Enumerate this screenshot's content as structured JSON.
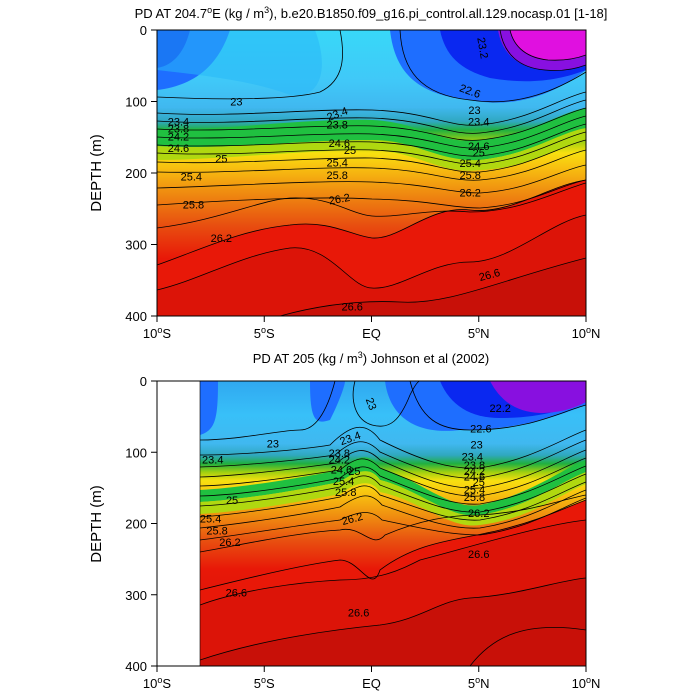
{
  "chart_data": [
    {
      "type": "contour",
      "title": "PD AT 204.7",
      "title_superscript": "o",
      "title_rest": "E (kg / m",
      "title_unit_superscript": "3",
      "title_tail": "), b.e20.B1850.f09_g16.pi_control.all.129.nocasp.01 [1-18]",
      "xlabel": "",
      "ylabel": "DEPTH (m)",
      "ylim": [
        400,
        0
      ],
      "xlim": [
        -10,
        10
      ],
      "x_ticks": [
        {
          "value": -10,
          "label": "10",
          "sup": "o",
          "suffix": "S"
        },
        {
          "value": -5,
          "label": "5",
          "sup": "o",
          "suffix": "S"
        },
        {
          "value": 0,
          "label": "EQ",
          "sup": "",
          "suffix": ""
        },
        {
          "value": 5,
          "label": "5",
          "sup": "o",
          "suffix": "N"
        },
        {
          "value": 10,
          "label": "10",
          "sup": "o",
          "suffix": "N"
        }
      ],
      "y_ticks": [
        {
          "value": 0,
          "label": "0"
        },
        {
          "value": 100,
          "label": "100"
        },
        {
          "value": 200,
          "label": "200"
        },
        {
          "value": 300,
          "label": "300"
        },
        {
          "value": 400,
          "label": "400"
        }
      ],
      "data_start_lat": -10,
      "contour_labels": [
        {
          "text": "23.2",
          "lat": 5.2,
          "depth": 25,
          "rotate": 80
        },
        {
          "text": "22.6",
          "lat": 4.6,
          "depth": 85,
          "rotate": 20
        },
        {
          "text": "23",
          "lat": -6.3,
          "depth": 100,
          "rotate": 0
        },
        {
          "text": "23.4",
          "lat": -1.6,
          "depth": 117,
          "rotate": -20
        },
        {
          "text": "23",
          "lat": 4.8,
          "depth": 112,
          "rotate": 0
        },
        {
          "text": "23.4",
          "lat": -9.0,
          "depth": 128,
          "rotate": 0
        },
        {
          "text": "23.4",
          "lat": 5.0,
          "depth": 128,
          "rotate": 0
        },
        {
          "text": "23.8",
          "lat": -1.6,
          "depth": 132,
          "rotate": 0
        },
        {
          "text": "23.8",
          "lat": -9.0,
          "depth": 138,
          "rotate": 0
        },
        {
          "text": "24.2",
          "lat": -9.0,
          "depth": 149,
          "rotate": 0
        },
        {
          "text": "24.6",
          "lat": -9.0,
          "depth": 165,
          "rotate": 0
        },
        {
          "text": "24.6",
          "lat": -1.5,
          "depth": 158,
          "rotate": 0
        },
        {
          "text": "25",
          "lat": -1.0,
          "depth": 168,
          "rotate": 0
        },
        {
          "text": "24.6",
          "lat": 5.0,
          "depth": 162,
          "rotate": 0
        },
        {
          "text": "25",
          "lat": 5.0,
          "depth": 171,
          "rotate": 0
        },
        {
          "text": "25",
          "lat": -7.0,
          "depth": 180,
          "rotate": 0
        },
        {
          "text": "25.4",
          "lat": -1.6,
          "depth": 185,
          "rotate": 0
        },
        {
          "text": "25.4",
          "lat": 4.6,
          "depth": 186,
          "rotate": 0
        },
        {
          "text": "25.4",
          "lat": -8.4,
          "depth": 205,
          "rotate": 0
        },
        {
          "text": "25.8",
          "lat": -1.6,
          "depth": 203,
          "rotate": 0
        },
        {
          "text": "25.8",
          "lat": 4.6,
          "depth": 203,
          "rotate": 0
        },
        {
          "text": "26.2",
          "lat": 4.6,
          "depth": 227,
          "rotate": 0
        },
        {
          "text": "26.2",
          "lat": -1.5,
          "depth": 236,
          "rotate": -10
        },
        {
          "text": "25.8",
          "lat": -8.3,
          "depth": 244,
          "rotate": 0
        },
        {
          "text": "26.2",
          "lat": -7.0,
          "depth": 291,
          "rotate": 0
        },
        {
          "text": "26.6",
          "lat": 5.5,
          "depth": 342,
          "rotate": -15
        },
        {
          "text": "26.6",
          "lat": -0.9,
          "depth": 387,
          "rotate": 0
        }
      ],
      "palette": {
        "deep_blue": "#0a28f0",
        "blue": "#1e6eff",
        "sky_blue": "#28c8f8",
        "cyan": "#30e0f8",
        "green": "#20c040",
        "yellow": "#f8e010",
        "orange": "#f09010",
        "red": "#e81808",
        "dark_red": "#c81008",
        "magenta": "#e010e0",
        "violet": "#8810e0"
      }
    },
    {
      "type": "contour",
      "title": "PD AT 205 (kg / m",
      "title_unit_superscript": "3",
      "title_tail": ") Johnson et al (2002)",
      "xlabel": "",
      "ylabel": "DEPTH (m)",
      "ylim": [
        400,
        0
      ],
      "xlim": [
        -10,
        10
      ],
      "x_ticks": [
        {
          "value": -10,
          "label": "10",
          "sup": "o",
          "suffix": "S"
        },
        {
          "value": -5,
          "label": "5",
          "sup": "o",
          "suffix": "S"
        },
        {
          "value": 0,
          "label": "EQ",
          "sup": "",
          "suffix": ""
        },
        {
          "value": 5,
          "label": "5",
          "sup": "o",
          "suffix": "N"
        },
        {
          "value": 10,
          "label": "10",
          "sup": "o",
          "suffix": "N"
        }
      ],
      "y_ticks": [
        {
          "value": 0,
          "label": "0"
        },
        {
          "value": 100,
          "label": "100"
        },
        {
          "value": 200,
          "label": "200"
        },
        {
          "value": 300,
          "label": "300"
        },
        {
          "value": 400,
          "label": "400"
        }
      ],
      "data_start_lat": -8,
      "contour_labels": [
        {
          "text": "23",
          "lat": 0.0,
          "depth": 32,
          "rotate": 70
        },
        {
          "text": "22.2",
          "lat": 6.0,
          "depth": 38,
          "rotate": 0
        },
        {
          "text": "22.6",
          "lat": 5.1,
          "depth": 67,
          "rotate": 0
        },
        {
          "text": "23",
          "lat": -4.6,
          "depth": 88,
          "rotate": 0
        },
        {
          "text": "23.4",
          "lat": -1.0,
          "depth": 80,
          "rotate": -20
        },
        {
          "text": "23",
          "lat": 4.9,
          "depth": 89,
          "rotate": 0
        },
        {
          "text": "23.4",
          "lat": -7.4,
          "depth": 110,
          "rotate": 0
        },
        {
          "text": "23.4",
          "lat": 4.7,
          "depth": 106,
          "rotate": 0
        },
        {
          "text": "23.8",
          "lat": -1.5,
          "depth": 101,
          "rotate": 0
        },
        {
          "text": "23.8",
          "lat": 4.8,
          "depth": 118,
          "rotate": 0
        },
        {
          "text": "24.2",
          "lat": -1.5,
          "depth": 110,
          "rotate": 0
        },
        {
          "text": "24.2",
          "lat": 4.8,
          "depth": 126,
          "rotate": 0
        },
        {
          "text": "24.6",
          "lat": -1.4,
          "depth": 124,
          "rotate": 0
        },
        {
          "text": "24.6",
          "lat": 4.8,
          "depth": 134,
          "rotate": 0
        },
        {
          "text": "25",
          "lat": -0.8,
          "depth": 126,
          "rotate": 0
        },
        {
          "text": "25",
          "lat": 5.0,
          "depth": 142,
          "rotate": 0
        },
        {
          "text": "25.4",
          "lat": -1.3,
          "depth": 140,
          "rotate": 0
        },
        {
          "text": "25.4",
          "lat": 4.8,
          "depth": 152,
          "rotate": 0
        },
        {
          "text": "25.8",
          "lat": -1.2,
          "depth": 156,
          "rotate": 0
        },
        {
          "text": "25.8",
          "lat": 4.8,
          "depth": 163,
          "rotate": 0
        },
        {
          "text": "25",
          "lat": -6.5,
          "depth": 167,
          "rotate": 0
        },
        {
          "text": "25.4",
          "lat": -7.5,
          "depth": 193,
          "rotate": 0
        },
        {
          "text": "26.2",
          "lat": -0.9,
          "depth": 193,
          "rotate": -15
        },
        {
          "text": "26.2",
          "lat": 5.0,
          "depth": 185,
          "rotate": 0
        },
        {
          "text": "25.8",
          "lat": -7.2,
          "depth": 210,
          "rotate": 0
        },
        {
          "text": "26.2",
          "lat": -6.6,
          "depth": 226,
          "rotate": 0
        },
        {
          "text": "26.6",
          "lat": 5.0,
          "depth": 243,
          "rotate": 0
        },
        {
          "text": "26.6",
          "lat": -6.3,
          "depth": 297,
          "rotate": 0
        },
        {
          "text": "26.6",
          "lat": -0.6,
          "depth": 325,
          "rotate": 0
        }
      ],
      "palette": {
        "deep_blue": "#0a28f0",
        "blue": "#1e6eff",
        "sky_blue": "#28c8f8",
        "cyan": "#30e0f8",
        "green": "#20c040",
        "yellow": "#f8e010",
        "orange": "#f09010",
        "red": "#e81808",
        "dark_red": "#c81008",
        "magenta": "#e010e0",
        "violet": "#8810e0"
      }
    }
  ]
}
